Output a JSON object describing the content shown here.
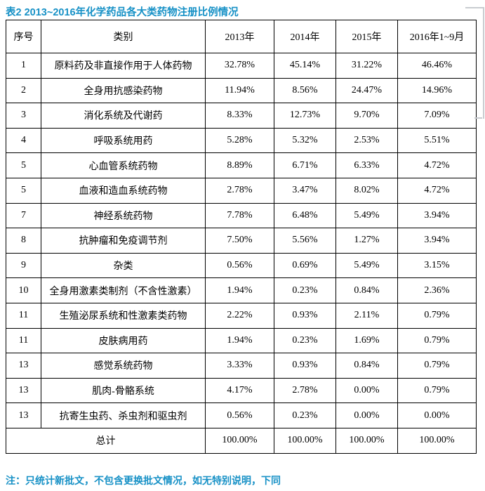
{
  "page": {
    "title": "表2 2013~2016年化学药品各大类药物注册比例情况",
    "note": "注：只统计新批文，不包含更换批文情况，如无特别说明，下同",
    "accent_color": "#1791c6",
    "border_color": "#000000"
  },
  "table": {
    "headers": [
      "序号",
      "类别",
      "2013年",
      "2014年",
      "2015年",
      "2016年1~9月"
    ],
    "rows": [
      [
        "1",
        "原料药及非直接作用于人体药物",
        "32.78%",
        "45.14%",
        "31.22%",
        "46.46%"
      ],
      [
        "2",
        "全身用抗感染药物",
        "11.94%",
        "8.56%",
        "24.47%",
        "14.96%"
      ],
      [
        "3",
        "消化系统及代谢药",
        "8.33%",
        "12.73%",
        "9.70%",
        "7.09%"
      ],
      [
        "4",
        "呼吸系统用药",
        "5.28%",
        "5.32%",
        "2.53%",
        "5.51%"
      ],
      [
        "5",
        "心血管系统药物",
        "8.89%",
        "6.71%",
        "6.33%",
        "4.72%"
      ],
      [
        "5",
        "血液和造血系统药物",
        "2.78%",
        "3.47%",
        "8.02%",
        "4.72%"
      ],
      [
        "7",
        "神经系统药物",
        "7.78%",
        "6.48%",
        "5.49%",
        "3.94%"
      ],
      [
        "8",
        "抗肿瘤和免疫调节剂",
        "7.50%",
        "5.56%",
        "1.27%",
        "3.94%"
      ],
      [
        "9",
        "杂类",
        "0.56%",
        "0.69%",
        "5.49%",
        "3.15%"
      ],
      [
        "10",
        "全身用激素类制剂（不含性激素）",
        "1.94%",
        "0.23%",
        "0.84%",
        "2.36%"
      ],
      [
        "11",
        "生殖泌尿系统和性激素类药物",
        "2.22%",
        "0.93%",
        "2.11%",
        "0.79%"
      ],
      [
        "11",
        "皮肤病用药",
        "1.94%",
        "0.23%",
        "1.69%",
        "0.79%"
      ],
      [
        "13",
        "感觉系统药物",
        "3.33%",
        "0.93%",
        "0.84%",
        "0.79%"
      ],
      [
        "13",
        "肌肉-骨骼系统",
        "4.17%",
        "2.78%",
        "0.00%",
        "0.79%"
      ],
      [
        "13",
        "抗寄生虫药、杀虫剂和驱虫剂",
        "0.56%",
        "0.23%",
        "0.00%",
        "0.00%"
      ]
    ],
    "total": {
      "label": "总计",
      "values": [
        "100.00%",
        "100.00%",
        "100.00%",
        "100.00%"
      ]
    }
  }
}
